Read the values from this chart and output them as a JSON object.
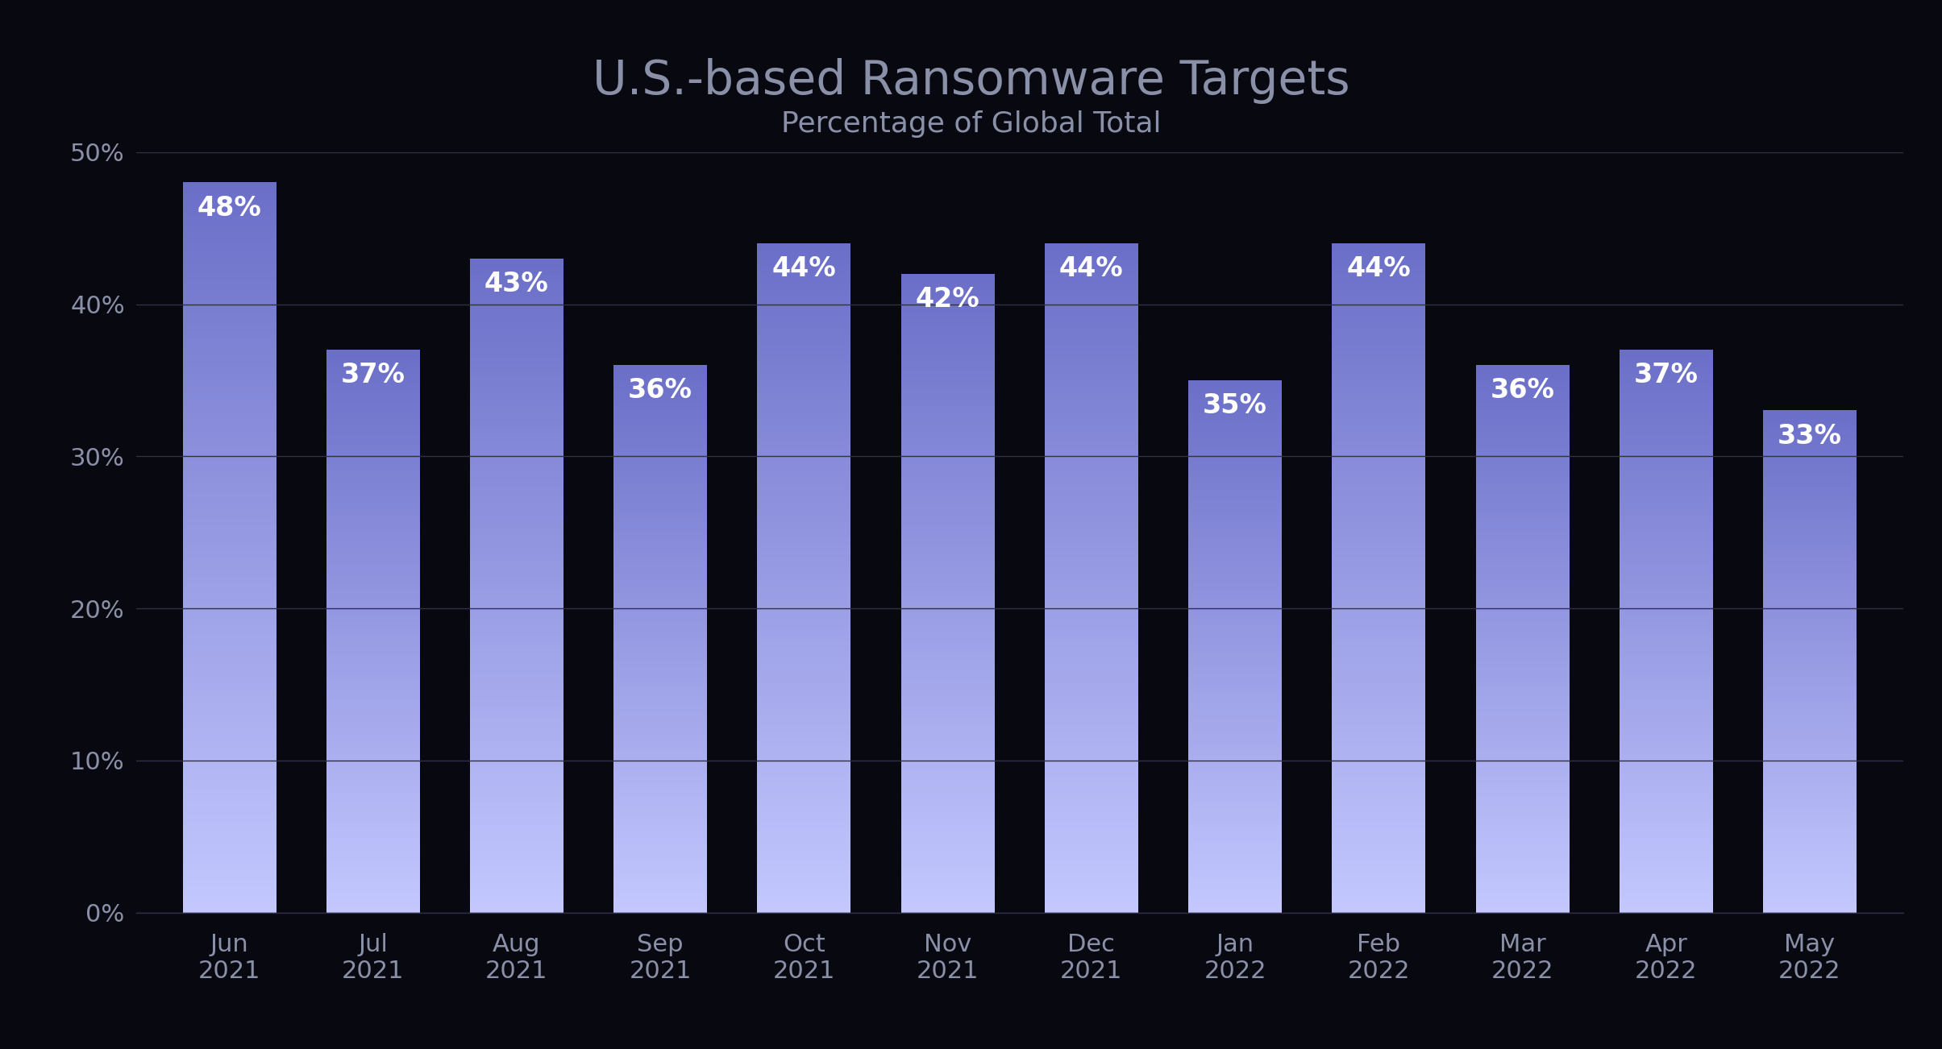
{
  "title": "U.S.-based Ransomware Targets",
  "subtitle": "Percentage of Global Total",
  "categories": [
    "Jun\n2021",
    "Jul\n2021",
    "Aug\n2021",
    "Sep\n2021",
    "Oct\n2021",
    "Nov\n2021",
    "Dec\n2021",
    "Jan\n2022",
    "Feb\n2022",
    "Mar\n2022",
    "Apr\n2022",
    "May\n2022"
  ],
  "values": [
    48,
    37,
    43,
    36,
    44,
    42,
    44,
    35,
    44,
    36,
    37,
    33
  ],
  "labels": [
    "48%",
    "37%",
    "43%",
    "36%",
    "44%",
    "42%",
    "44%",
    "35%",
    "44%",
    "36%",
    "37%",
    "33%"
  ],
  "bar_color_top": "#6B6FC8",
  "bar_color_bottom": "#C4C8FF",
  "background_color": "#080810",
  "title_color": "#8A90A8",
  "subtitle_color": "#8A90A8",
  "tick_color": "#8A90A8",
  "label_color": "#FFFFFF",
  "grid_color": "#303048",
  "ylim": [
    0,
    50
  ],
  "yticks": [
    0,
    10,
    20,
    30,
    40,
    50
  ],
  "ytick_labels": [
    "0%",
    "10%",
    "20%",
    "30%",
    "40%",
    "50%"
  ],
  "title_fontsize": 42,
  "subtitle_fontsize": 26,
  "tick_fontsize": 22,
  "label_fontsize": 24,
  "bar_width": 0.65
}
